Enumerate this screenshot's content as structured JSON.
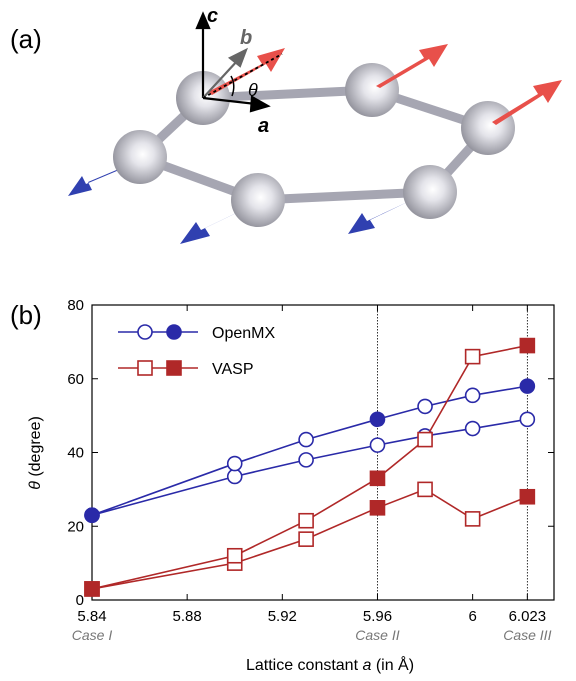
{
  "panel_labels": [
    "(a)",
    "(b)"
  ],
  "structure": {
    "axes": {
      "c": "c",
      "b": "b",
      "a": "a",
      "theta": "θ"
    },
    "colors": {
      "up": "#e8504a",
      "down": "#3040b0",
      "atom": "#d0d0d8",
      "bond": "#b8b8c4"
    }
  },
  "chart_data": {
    "type": "line",
    "xlabel_prefix": "Lattice constant ",
    "xlabel_var": "a",
    "xlabel_suffix": " (in Å)",
    "ylabel_var": "θ",
    "ylabel_suffix": "  (degree)",
    "xlim": [
      5.84,
      6.03
    ],
    "ylim": [
      0,
      80
    ],
    "xticks": [
      {
        "value": 5.84,
        "label": "5.84"
      },
      {
        "value": 5.88,
        "label": "5.88"
      },
      {
        "value": 5.92,
        "label": "5.92"
      },
      {
        "value": 5.96,
        "label": "5.96"
      },
      {
        "value": 6.0,
        "label": "6"
      },
      {
        "value": 6.023,
        "label": "6.023"
      }
    ],
    "yticks": [
      0,
      20,
      40,
      60,
      80
    ],
    "cases": [
      {
        "x": 5.84,
        "label": "Case I"
      },
      {
        "x": 5.96,
        "label": "Case II"
      },
      {
        "x": 6.023,
        "label": "Case III"
      }
    ],
    "vlines": [
      5.96,
      6.023
    ],
    "legend_position": "top-left",
    "series": [
      {
        "name": "OpenMX",
        "color": "#2a2aa8",
        "marker": "circle",
        "fill": "open",
        "x": [
          5.84,
          5.9,
          5.93,
          5.96,
          5.98,
          6.0,
          6.023
        ],
        "y": [
          23,
          33.5,
          38,
          42,
          44.5,
          46.5,
          49
        ]
      },
      {
        "name": "OpenMX",
        "color": "#2a2aa8",
        "marker": "circle",
        "fill": "mixed",
        "x": [
          5.84,
          5.9,
          5.93,
          5.96,
          5.98,
          6.0,
          6.023
        ],
        "y": [
          23,
          37,
          43.5,
          49,
          52.5,
          55.5,
          58
        ],
        "open": [
          false,
          true,
          true,
          false,
          true,
          true,
          false
        ]
      },
      {
        "name": "VASP",
        "color": "#b02828",
        "marker": "square",
        "fill": "open",
        "x": [
          5.84,
          5.9,
          5.93,
          5.96,
          5.98,
          6.0,
          6.023
        ],
        "y": [
          3,
          10,
          16.5,
          25,
          30,
          22,
          28
        ],
        "open": [
          false,
          true,
          true,
          false,
          true,
          true,
          false
        ]
      },
      {
        "name": "VASP",
        "color": "#b02828",
        "marker": "square",
        "fill": "mixed",
        "x": [
          5.84,
          5.9,
          5.93,
          5.96,
          5.98,
          6.0,
          6.023
        ],
        "y": [
          3,
          12,
          21.5,
          33,
          43.5,
          66,
          69
        ],
        "open": [
          false,
          true,
          true,
          false,
          true,
          true,
          false
        ]
      }
    ],
    "legend": [
      {
        "name": "OpenMX",
        "color": "#2a2aa8",
        "marker": "circle"
      },
      {
        "name": "VASP",
        "color": "#b02828",
        "marker": "square"
      }
    ]
  }
}
